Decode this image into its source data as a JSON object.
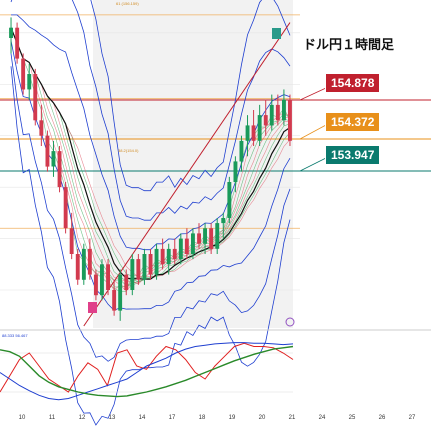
{
  "title": "ドル円１時間足",
  "colors": {
    "candle_up": "#1a9a5a",
    "candle_down": "#d23a4e",
    "resistance_line": "#c0202e",
    "mid_line": "#e8901a",
    "support_line": "#0a7a6e",
    "ma_black": "#111111",
    "band_blue": "#1f3fd0",
    "osc_red": "#e02020",
    "osc_blue": "#1f3fd0",
    "osc_green": "#2a8a2a",
    "ma_ribbon_red": "#e05a6a",
    "ma_ribbon_green": "#3aaa5a"
  },
  "chart_data": {
    "type": "line",
    "instrument_label": "ドル円１時間足",
    "x_ticks": [
      "10",
      "11",
      "12",
      "13",
      "14",
      "17",
      "18",
      "19",
      "20",
      "21",
      "24",
      "25",
      "26",
      "27"
    ],
    "price_levels": [
      {
        "name": "resistance",
        "value": "154.878",
        "color": "#c0202e"
      },
      {
        "name": "middle",
        "value": "154.372",
        "color": "#e8901a"
      },
      {
        "name": "support",
        "value": "153.947",
        "color": "#0a7a6e"
      }
    ],
    "fib_labels": [
      "61 (156.159)",
      "38.2(154.0)"
    ],
    "oscillator_label": "88.333 56.467",
    "y_approx_range": [
      151.3,
      157.6
    ],
    "candles": [
      [
        156.9,
        157.3,
        156.6,
        157.1
      ],
      [
        157.1,
        157.2,
        156.4,
        156.5
      ],
      [
        156.5,
        156.6,
        155.8,
        155.9
      ],
      [
        155.9,
        156.4,
        155.7,
        156.2
      ],
      [
        156.2,
        156.3,
        155.2,
        155.3
      ],
      [
        155.3,
        155.6,
        154.8,
        155.0
      ],
      [
        155.0,
        155.1,
        154.3,
        154.4
      ],
      [
        154.4,
        154.9,
        154.2,
        154.7
      ],
      [
        154.7,
        154.8,
        153.9,
        154.0
      ],
      [
        154.0,
        154.1,
        153.1,
        153.2
      ],
      [
        153.2,
        153.5,
        152.6,
        152.7
      ],
      [
        152.7,
        152.8,
        152.1,
        152.2
      ],
      [
        152.2,
        152.9,
        152.1,
        152.8
      ],
      [
        152.8,
        153.0,
        152.2,
        152.3
      ],
      [
        152.3,
        152.4,
        151.8,
        151.9
      ],
      [
        151.9,
        152.6,
        151.8,
        152.5
      ],
      [
        152.5,
        152.6,
        151.9,
        152.0
      ],
      [
        152.0,
        152.2,
        151.5,
        151.6
      ],
      [
        151.6,
        152.4,
        151.4,
        152.3
      ],
      [
        152.3,
        152.4,
        151.9,
        152.0
      ],
      [
        152.0,
        152.7,
        151.9,
        152.6
      ],
      [
        152.6,
        152.7,
        152.1,
        152.2
      ],
      [
        152.2,
        152.8,
        152.1,
        152.7
      ],
      [
        152.7,
        152.8,
        152.2,
        152.3
      ],
      [
        152.3,
        152.9,
        152.2,
        152.8
      ],
      [
        152.8,
        153.0,
        152.4,
        152.5
      ],
      [
        152.5,
        152.9,
        152.3,
        152.8
      ],
      [
        152.8,
        153.0,
        152.5,
        152.6
      ],
      [
        152.6,
        153.1,
        152.5,
        153.0
      ],
      [
        153.0,
        153.2,
        152.6,
        152.7
      ],
      [
        152.7,
        153.2,
        152.6,
        153.1
      ],
      [
        153.1,
        153.3,
        152.8,
        152.9
      ],
      [
        152.9,
        153.3,
        152.7,
        153.2
      ],
      [
        153.2,
        153.3,
        152.7,
        152.8
      ],
      [
        152.8,
        153.4,
        152.7,
        153.3
      ],
      [
        153.3,
        153.5,
        153.0,
        153.4
      ],
      [
        153.4,
        154.2,
        153.3,
        154.1
      ],
      [
        154.1,
        154.6,
        153.9,
        154.5
      ],
      [
        154.5,
        155.0,
        154.3,
        154.9
      ],
      [
        154.9,
        155.4,
        154.6,
        155.2
      ],
      [
        155.2,
        155.5,
        154.8,
        154.9
      ],
      [
        154.9,
        155.6,
        154.8,
        155.4
      ],
      [
        155.4,
        155.7,
        155.0,
        155.2
      ],
      [
        155.2,
        155.8,
        155.1,
        155.6
      ],
      [
        155.6,
        155.8,
        155.2,
        155.3
      ],
      [
        155.3,
        155.9,
        155.2,
        155.7
      ],
      [
        155.7,
        155.8,
        154.8,
        154.9
      ]
    ]
  }
}
